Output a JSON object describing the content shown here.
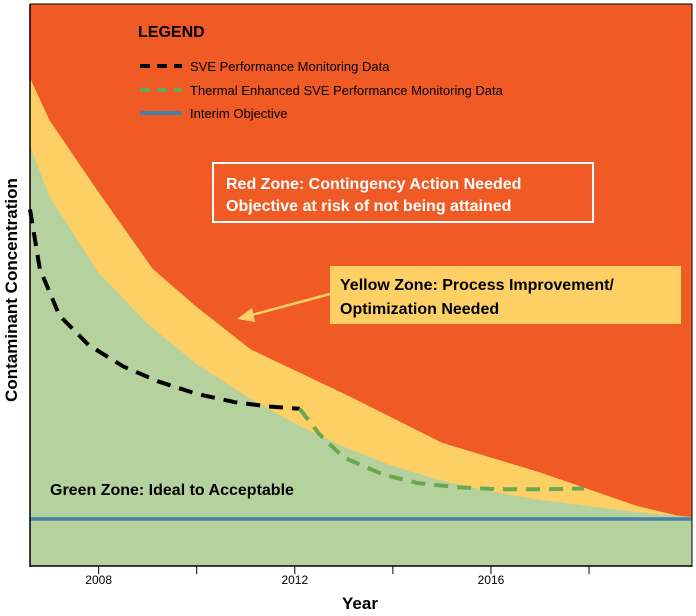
{
  "chart_data": {
    "type": "area",
    "xlabel": "Year",
    "ylabel": "Contaminant Concentration",
    "xlim": [
      2006.6,
      2020.1
    ],
    "ylim": [
      0,
      100
    ],
    "x_ticks": [
      2008,
      2012,
      2016
    ],
    "x_minor_ticks": [
      2008,
      2010,
      2012,
      2014,
      2016,
      2018
    ],
    "zones": {
      "red": {
        "label": "Red Zone: Contingency Action Needed",
        "label2": "Objective at risk of not being attained",
        "color": "#f05a24"
      },
      "yellow": {
        "label": "Yellow Zone: Process Improvement/",
        "label2": "Optimization Needed",
        "color": "#fdd065",
        "upper_boundary": {
          "x": [
            2006.6,
            2007.0,
            2008.0,
            2009.1,
            2010.0,
            2011.1,
            2013.1,
            2015.0,
            2017.0,
            2019.0,
            2020.1
          ],
          "y": [
            104,
            94,
            77,
            59,
            50,
            40,
            29,
            18,
            11,
            3,
            0
          ]
        }
      },
      "green": {
        "label": "Green Zone: Ideal to Acceptable",
        "color": "#b5d19e",
        "upper_boundary": {
          "x": [
            2006.6,
            2007.0,
            2008.0,
            2009.0,
            2010.0,
            2011.0,
            2012.0,
            2013.0,
            2014.0,
            2015.0,
            2016.0,
            2017.0,
            2018.0,
            2019.0,
            2020.1
          ],
          "y": [
            88,
            76,
            58,
            46,
            36.5,
            29,
            22.5,
            17,
            12.5,
            9,
            6.5,
            4.5,
            3,
            1.6,
            0.5
          ]
        }
      }
    },
    "legend": {
      "title": "LEGEND",
      "position": "top-left"
    },
    "series": [
      {
        "name": "SVE Performance Monitoring Data",
        "color": "#000000",
        "style": "dashed",
        "x": [
          2006.6,
          2006.8,
          2007.2,
          2007.8,
          2008.5,
          2009.2,
          2010.0,
          2010.8,
          2011.5,
          2012.1
        ],
        "y": [
          73,
          59,
          48,
          41,
          36,
          32.5,
          29.5,
          27.5,
          26.5,
          26
        ]
      },
      {
        "name": "Thermal Enhanced SVE Performance Monitoring Data",
        "color": "#6aa84f",
        "style": "dashed",
        "x": [
          2012.1,
          2012.5,
          2013.0,
          2013.8,
          2014.5,
          2015.3,
          2016.2,
          2017.0,
          2017.9
        ],
        "y": [
          26,
          20,
          14.5,
          10.5,
          8.5,
          7.5,
          7,
          7,
          7.2
        ]
      },
      {
        "name": "Interim Objective",
        "color": "#4a7fa6",
        "style": "solid",
        "x": [
          2006.6,
          2020.1
        ],
        "y": [
          0,
          0
        ]
      }
    ],
    "grid": false
  }
}
